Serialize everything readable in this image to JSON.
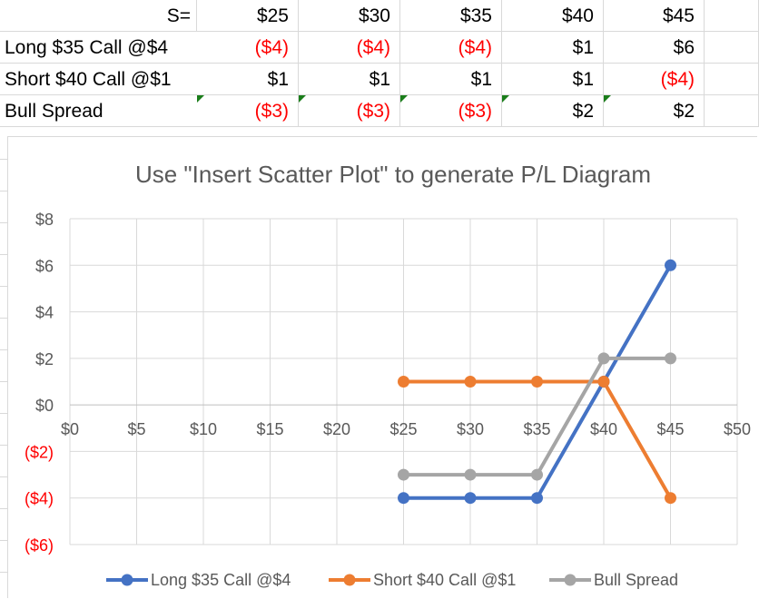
{
  "table": {
    "header": {
      "label": "S=",
      "values": [
        "$25",
        "$30",
        "$35",
        "$40",
        "$45"
      ]
    },
    "rows": [
      {
        "label": "Long $35 Call @$4",
        "values": [
          "($4)",
          "($4)",
          "($4)",
          "$1",
          "$6"
        ]
      },
      {
        "label": "Short $40 Call @$1",
        "values": [
          "$1",
          "$1",
          "$1",
          "$1",
          "($4)"
        ]
      },
      {
        "label": "Bull Spread",
        "values": [
          "($3)",
          "($3)",
          "($3)",
          "$2",
          "$2"
        ]
      }
    ]
  },
  "chart_data": {
    "type": "scatter",
    "title": "Use \"Insert Scatter Plot\" to generate P/L Diagram",
    "xlim": [
      0,
      50
    ],
    "ylim": [
      -6,
      8
    ],
    "x_ticks": [
      0,
      5,
      10,
      15,
      20,
      25,
      30,
      35,
      40,
      45,
      50
    ],
    "x_tick_labels": [
      "$0",
      "$5",
      "$10",
      "$15",
      "$20",
      "$25",
      "$30",
      "$35",
      "$40",
      "$45",
      "$50"
    ],
    "y_ticks": [
      8,
      6,
      4,
      2,
      0,
      -2,
      -4,
      -6
    ],
    "y_tick_labels": [
      "$8",
      "$6",
      "$4",
      "$2",
      "$0",
      "($2)",
      "($4)",
      "($6)"
    ],
    "grid": true,
    "legend_position": "bottom",
    "colors": {
      "negative_label": "#ff0000",
      "grid": "#d9d9d9",
      "title": "#595959"
    },
    "series": [
      {
        "name": "Long $35 Call @$4",
        "color": "#4472c4",
        "x": [
          25,
          30,
          35,
          40,
          45
        ],
        "y": [
          -4,
          -4,
          -4,
          1,
          6
        ]
      },
      {
        "name": "Short $40 Call @$1",
        "color": "#ed7d31",
        "x": [
          25,
          30,
          35,
          40,
          45
        ],
        "y": [
          1,
          1,
          1,
          1,
          -4
        ]
      },
      {
        "name": "Bull Spread",
        "color": "#a5a5a5",
        "x": [
          25,
          30,
          35,
          40,
          45
        ],
        "y": [
          -3,
          -3,
          -3,
          2,
          2
        ]
      }
    ]
  }
}
